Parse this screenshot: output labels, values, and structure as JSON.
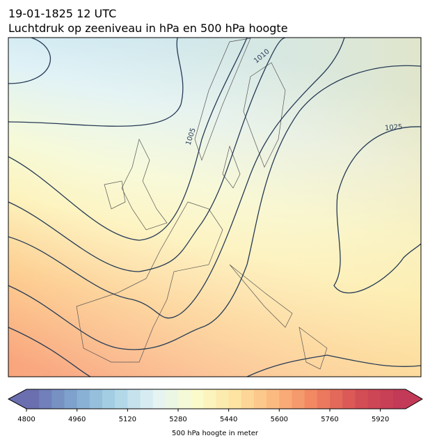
{
  "header": {
    "date": "19-01-1825 12 UTC",
    "title": "Luchtdruk op zeeniveau in hPa en 500 hPa hoogte"
  },
  "map": {
    "contour_labels": [
      "1005",
      "1010",
      "1025"
    ]
  },
  "colorbar": {
    "label": "500 hPa hoogte in meter",
    "lim": [
      4800,
      6000
    ],
    "ticks": [
      4800,
      4960,
      5120,
      5280,
      5440,
      5600,
      5760,
      5920
    ],
    "colors": [
      "#6b6fb0",
      "#7fa6cf",
      "#a9d3e6",
      "#e2f3f5",
      "#fbfbcc",
      "#fde3a0",
      "#fbb57c",
      "#f0805e",
      "#d44e55",
      "#c23a57"
    ]
  }
}
